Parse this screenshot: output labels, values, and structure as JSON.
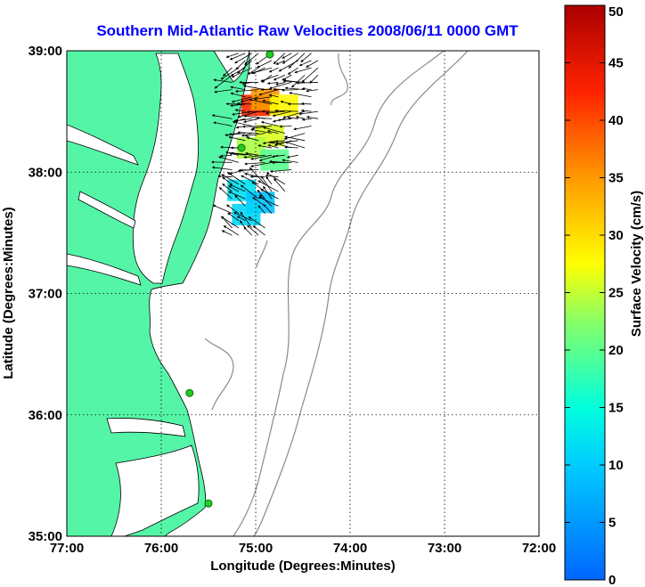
{
  "title": "Southern Mid-Atlantic Raw Velocities 2008/06/11 0000 GMT",
  "x_axis": {
    "label": "Longitude (Degrees:Minutes)",
    "ticks": [
      {
        "value": -77,
        "label": "77:00"
      },
      {
        "value": -76,
        "label": "76:00"
      },
      {
        "value": -75,
        "label": "75:00"
      },
      {
        "value": -74,
        "label": "74:00"
      },
      {
        "value": -73,
        "label": "73:00"
      },
      {
        "value": -72,
        "label": "72:00"
      }
    ],
    "range": [
      -77,
      -72
    ]
  },
  "y_axis": {
    "label": "Latitude (Degrees:Minutes)",
    "ticks": [
      {
        "value": 39,
        "label": "39:00"
      },
      {
        "value": 38,
        "label": "38:00"
      },
      {
        "value": 37,
        "label": "37:00"
      },
      {
        "value": 36,
        "label": "36:00"
      },
      {
        "value": 35,
        "label": "35:00"
      }
    ],
    "range": [
      35,
      39
    ]
  },
  "colorbar": {
    "label": "Surface Velocity (cm/s)",
    "range": [
      0,
      50
    ],
    "ticks": [
      "0",
      "5",
      "10",
      "15",
      "20",
      "25",
      "30",
      "35",
      "40",
      "45",
      "50"
    ],
    "colormap": "jet"
  },
  "grid": "dotted",
  "colors": {
    "land": "#55f5a8",
    "coastline": "#000000",
    "bathymetry": "#8a8a8a",
    "title": "#0000ff",
    "station": "#22cc22"
  },
  "stations": [
    {
      "lon": -74.85,
      "lat": 38.97
    },
    {
      "lon": -75.15,
      "lat": 38.2
    },
    {
      "lon": -75.7,
      "lat": 36.18
    },
    {
      "lon": -75.5,
      "lat": 35.27
    }
  ],
  "velocity_patches": [
    {
      "lon": -75.0,
      "lat": 38.55,
      "speed": 42
    },
    {
      "lon": -74.9,
      "lat": 38.6,
      "speed": 35
    },
    {
      "lon": -74.7,
      "lat": 38.55,
      "speed": 28
    },
    {
      "lon": -74.85,
      "lat": 38.3,
      "speed": 26
    },
    {
      "lon": -75.05,
      "lat": 38.2,
      "speed": 24
    },
    {
      "lon": -74.8,
      "lat": 38.1,
      "speed": 20
    },
    {
      "lon": -75.15,
      "lat": 37.85,
      "speed": 12
    },
    {
      "lon": -74.95,
      "lat": 37.75,
      "speed": 9
    },
    {
      "lon": -75.1,
      "lat": 37.65,
      "speed": 11
    }
  ],
  "arrows_field": {
    "lon_range": [
      -75.25,
      -74.3
    ],
    "lat_range": [
      37.45,
      38.98
    ],
    "direction": "westward"
  }
}
